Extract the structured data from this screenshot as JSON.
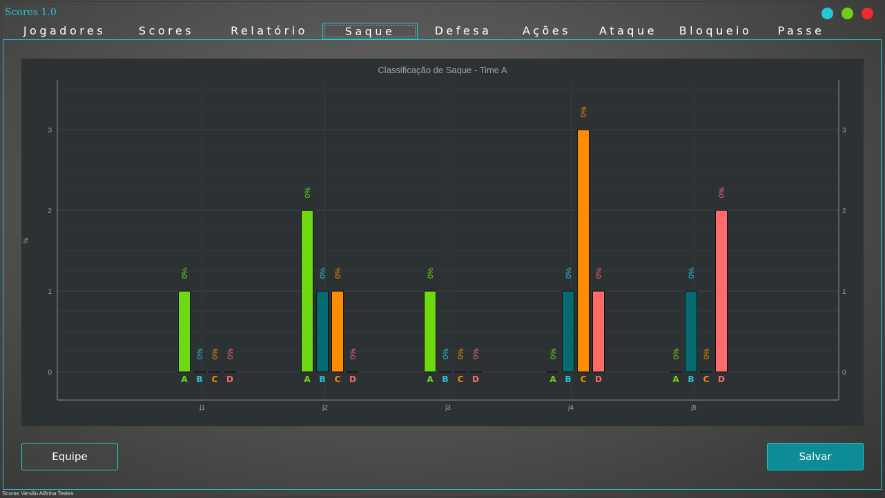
{
  "app": {
    "title": "Scores 1.0",
    "status_text": "Scores Versão Alfinha Testes"
  },
  "window_controls": [
    {
      "name": "minimize",
      "color": "#27c6d9"
    },
    {
      "name": "maximize",
      "color": "#6ed011"
    },
    {
      "name": "close",
      "color": "#f22a2a"
    }
  ],
  "tabs": [
    {
      "label": "Jogadores"
    },
    {
      "label": "Scores"
    },
    {
      "label": "Relatório"
    },
    {
      "label": "Saque",
      "active": true
    },
    {
      "label": "Defesa"
    },
    {
      "label": "Ações"
    },
    {
      "label": "Ataque"
    },
    {
      "label": "Bloqueio"
    },
    {
      "label": "Passe"
    }
  ],
  "buttons": {
    "equipe": "Equipe",
    "salvar": "Salvar"
  },
  "chart_data": {
    "type": "bar",
    "title": "Classificação de Saque - Time A",
    "xlabel": "",
    "ylabel": "%",
    "ylim": [
      -0.35,
      3.6
    ],
    "yticks": [
      0,
      1,
      2,
      3
    ],
    "grid": true,
    "categories": [
      "j1",
      "j2",
      "j3",
      "j4",
      "j5"
    ],
    "series": [
      {
        "name": "A",
        "color": "#6ed911",
        "values": [
          1,
          2,
          1,
          0,
          0
        ]
      },
      {
        "name": "B",
        "color": "#046c70",
        "label_color": "#27c6d9",
        "values": [
          0,
          1,
          0,
          1,
          1
        ]
      },
      {
        "name": "C",
        "color": "#ff8c00",
        "values": [
          0,
          1,
          0,
          3,
          0
        ]
      },
      {
        "name": "D",
        "color": "#ff6a6a",
        "values": [
          0,
          0,
          0,
          1,
          2
        ]
      }
    ],
    "data_label": "0%"
  }
}
